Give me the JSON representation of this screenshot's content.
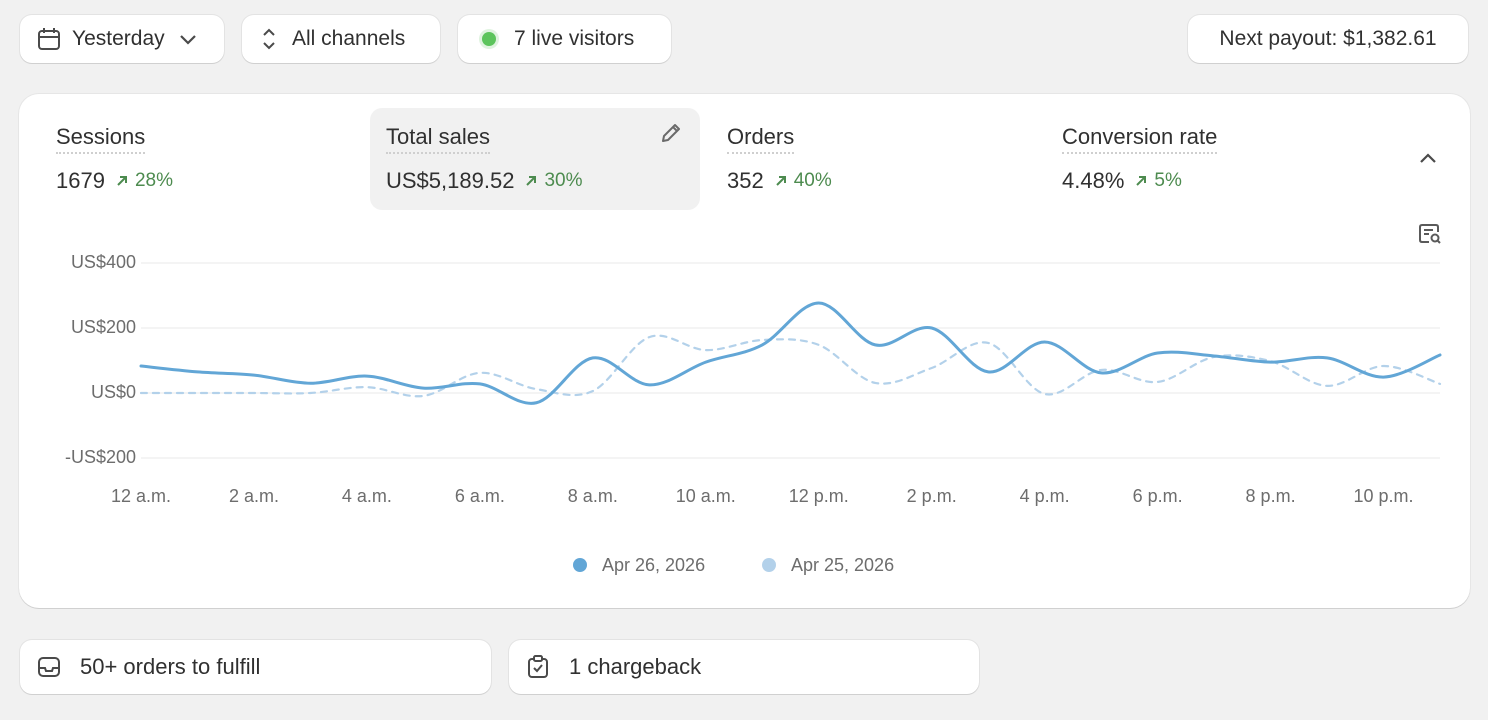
{
  "filters": [
    "Yesterday",
    "All channels",
    "7 live visitors"
  ],
  "payout": "Next payout: $1,382.61",
  "metrics": [
    {
      "label": "Sessions",
      "value": "1679",
      "change": "28%"
    },
    {
      "label": "Total sales",
      "value": "US$5,189.52",
      "change": "30%"
    },
    {
      "label": "Orders",
      "value": "352",
      "change": "40%"
    },
    {
      "label": "Conversion rate",
      "value": "4.48%",
      "change": "5%"
    }
  ],
  "tasks": [
    "50+ orders to fulfill",
    "1 chargeback"
  ],
  "chart_data": {
    "type": "line",
    "categories": [
      "12 a.m.",
      null,
      "2 a.m.",
      null,
      "4 a.m.",
      null,
      "6 a.m.",
      null,
      "8 a.m.",
      null,
      "10 a.m.",
      null,
      "12 p.m.",
      null,
      "2 p.m.",
      null,
      "4 p.m.",
      null,
      "6 p.m.",
      null,
      "8 p.m.",
      null,
      "10 p.m.",
      null
    ],
    "series": [
      {
        "name": "Apr 26, 2026",
        "color": "#62a6d6",
        "values": [
          83,
          65,
          55,
          30,
          52,
          15,
          28,
          -30,
          108,
          25,
          95,
          148,
          277,
          148,
          200,
          65,
          157,
          62,
          123,
          114,
          95,
          108,
          49,
          117
        ]
      },
      {
        "name": "Apr 25, 2026",
        "color": "#b3d1ea",
        "values": [
          0,
          0,
          0,
          0,
          18,
          -9,
          62,
          12,
          6,
          172,
          132,
          163,
          148,
          31,
          77,
          154,
          -3,
          71,
          34,
          111,
          98,
          22,
          83,
          28
        ]
      }
    ],
    "ylim": [
      -200,
      400
    ],
    "yticks": [
      {
        "value": -200,
        "label": "-US$200"
      },
      {
        "value": 0,
        "label": "US$0"
      },
      {
        "value": 200,
        "label": "US$200"
      },
      {
        "value": 400,
        "label": "US$400"
      }
    ],
    "grid": true
  }
}
